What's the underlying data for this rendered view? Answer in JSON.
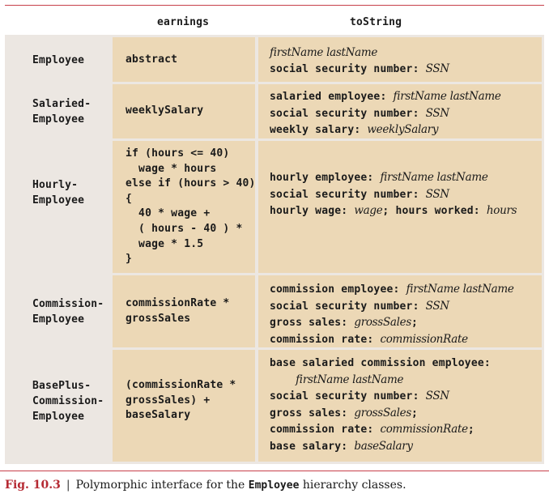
{
  "headers": {
    "col1": "earnings",
    "col2": "toString"
  },
  "rows": [
    {
      "label_lines": [
        "Employee"
      ],
      "earnings_lines": [
        "abstract"
      ],
      "tostring_lines": [
        [
          {
            "t": "firstName lastName",
            "i": true
          }
        ],
        [
          {
            "t": "social security number: ",
            "i": false
          },
          {
            "t": "SSN",
            "i": true
          }
        ]
      ]
    },
    {
      "label_lines": [
        "Salaried-",
        "Employee"
      ],
      "earnings_lines": [
        "weeklySalary"
      ],
      "tostring_lines": [
        [
          {
            "t": "salaried employee: ",
            "i": false
          },
          {
            "t": "firstName lastName",
            "i": true
          }
        ],
        [
          {
            "t": "social security number: ",
            "i": false
          },
          {
            "t": "SSN",
            "i": true
          }
        ],
        [
          {
            "t": "weekly salary: ",
            "i": false
          },
          {
            "t": "weeklySalary",
            "i": true
          }
        ]
      ]
    },
    {
      "label_lines": [
        "Hourly-",
        "Employee"
      ],
      "earnings_lines": [
        "if (hours <= 40)",
        "  wage * hours",
        "else if (hours > 40)",
        "{",
        "  40 * wage +",
        "  ( hours - 40 ) *",
        "  wage * 1.5",
        "}"
      ],
      "tostring_lines": [
        [
          {
            "t": "hourly employee: ",
            "i": false
          },
          {
            "t": "firstName lastName",
            "i": true
          }
        ],
        [
          {
            "t": "social security number: ",
            "i": false
          },
          {
            "t": "SSN",
            "i": true
          }
        ],
        [
          {
            "t": "hourly wage: ",
            "i": false
          },
          {
            "t": "wage",
            "i": true
          },
          {
            "t": "; hours worked: ",
            "i": false
          },
          {
            "t": "hours",
            "i": true
          }
        ]
      ]
    },
    {
      "label_lines": [
        "Commission-",
        "Employee"
      ],
      "earnings_lines": [
        "commissionRate *",
        "grossSales"
      ],
      "tostring_lines": [
        [
          {
            "t": "commission employee: ",
            "i": false
          },
          {
            "t": "firstName lastName",
            "i": true
          }
        ],
        [
          {
            "t": "social security number: ",
            "i": false
          },
          {
            "t": "SSN",
            "i": true
          }
        ],
        [
          {
            "t": "gross sales: ",
            "i": false
          },
          {
            "t": "grossSales",
            "i": true
          },
          {
            "t": ";",
            "i": false
          }
        ],
        [
          {
            "t": "commission rate: ",
            "i": false
          },
          {
            "t": "commissionRate",
            "i": true
          }
        ]
      ]
    },
    {
      "label_lines": [
        "BasePlus-",
        "Commission-",
        "Employee"
      ],
      "earnings_lines": [
        "(commissionRate *",
        "grossSales) +",
        "baseSalary"
      ],
      "tostring_lines": [
        [
          {
            "t": "base salaried commission employee:",
            "i": false
          }
        ],
        [
          {
            "t": "    ",
            "i": false
          },
          {
            "t": "firstName lastName",
            "i": true
          }
        ],
        [
          {
            "t": "social security number: ",
            "i": false
          },
          {
            "t": "SSN",
            "i": true
          }
        ],
        [
          {
            "t": "gross sales: ",
            "i": false
          },
          {
            "t": "grossSales",
            "i": true
          },
          {
            "t": ";",
            "i": false
          }
        ],
        [
          {
            "t": "commission rate: ",
            "i": false
          },
          {
            "t": "commissionRate",
            "i": true
          },
          {
            "t": ";",
            "i": false
          }
        ],
        [
          {
            "t": "base salary: ",
            "i": false
          },
          {
            "t": "baseSalary",
            "i": true
          }
        ]
      ]
    }
  ],
  "caption": {
    "fig": "Fig. 10.3",
    "sep": "|",
    "text_before": "Polymorphic interface for the ",
    "class_name": "Employee",
    "text_after": " hierarchy classes."
  },
  "colors": {
    "accent": "#c7404a",
    "cell": "#ecd8b6",
    "panel": "#ece7e2"
  }
}
